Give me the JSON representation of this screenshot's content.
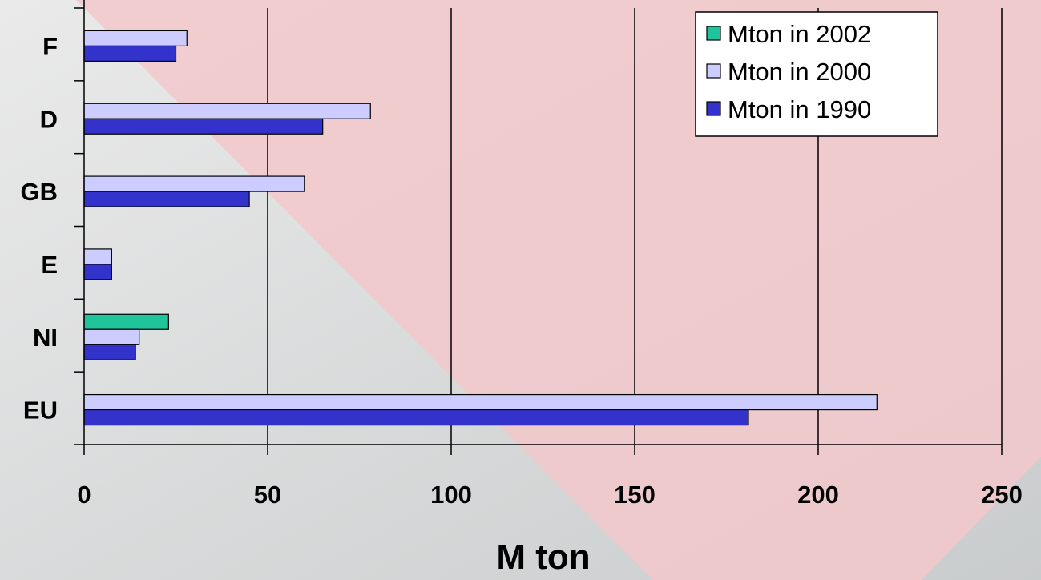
{
  "chart_data": {
    "type": "bar",
    "orientation": "horizontal",
    "categories": [
      "F",
      "D",
      "GB",
      "E",
      "NI",
      "EU"
    ],
    "series": [
      {
        "name": "Mton in 2002",
        "color": "#1fc49a",
        "values": [
          null,
          null,
          null,
          null,
          23,
          null
        ]
      },
      {
        "name": "Mton in 2000",
        "color": "#ccccff",
        "values": [
          28,
          78,
          60,
          7.5,
          15,
          216
        ]
      },
      {
        "name": "Mton in 1990",
        "color": "#3333cc",
        "values": [
          25,
          65,
          45,
          7.5,
          14,
          181
        ]
      }
    ],
    "xlim": [
      0,
      250
    ],
    "xticks": [
      0,
      50,
      100,
      150,
      200,
      250
    ],
    "xlabel": "M ton",
    "ylabel": "",
    "title": "",
    "grid": "vertical",
    "legend": "top-right"
  }
}
